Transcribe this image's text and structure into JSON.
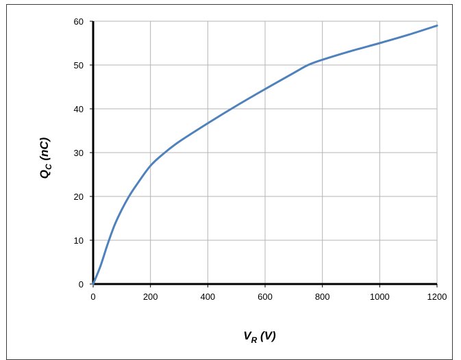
{
  "chart_data": {
    "type": "line",
    "title": "",
    "xlabel": {
      "main": "V",
      "sub": "R",
      "unit": " (V)"
    },
    "ylabel": {
      "main": "Q",
      "sub": "C",
      "unit": " (nC)"
    },
    "xlim": [
      0,
      1200
    ],
    "ylim": [
      0,
      60
    ],
    "xticks": [
      0,
      200,
      400,
      600,
      800,
      1000,
      1200
    ],
    "yticks": [
      0,
      10,
      20,
      30,
      40,
      50,
      60
    ],
    "xtick_labels": [
      "0",
      "200",
      "400",
      "600",
      "800",
      "1000",
      "1200"
    ],
    "ytick_labels": [
      "0",
      "10",
      "20",
      "30",
      "40",
      "50",
      "60"
    ],
    "grid": true,
    "legend": "none",
    "series": [
      {
        "color": "#4f81bd",
        "x": [
          0,
          25,
          50,
          75,
          100,
          125,
          150,
          200,
          250,
          300,
          400,
          500,
          600,
          700,
          750,
          800,
          900,
          1000,
          1100,
          1200
        ],
        "y": [
          0,
          4,
          9,
          13.5,
          17,
          20,
          22.5,
          27,
          30,
          32.5,
          36.7,
          40.7,
          44.5,
          48.2,
          50,
          51.2,
          53.2,
          55,
          56.9,
          59
        ]
      }
    ]
  }
}
